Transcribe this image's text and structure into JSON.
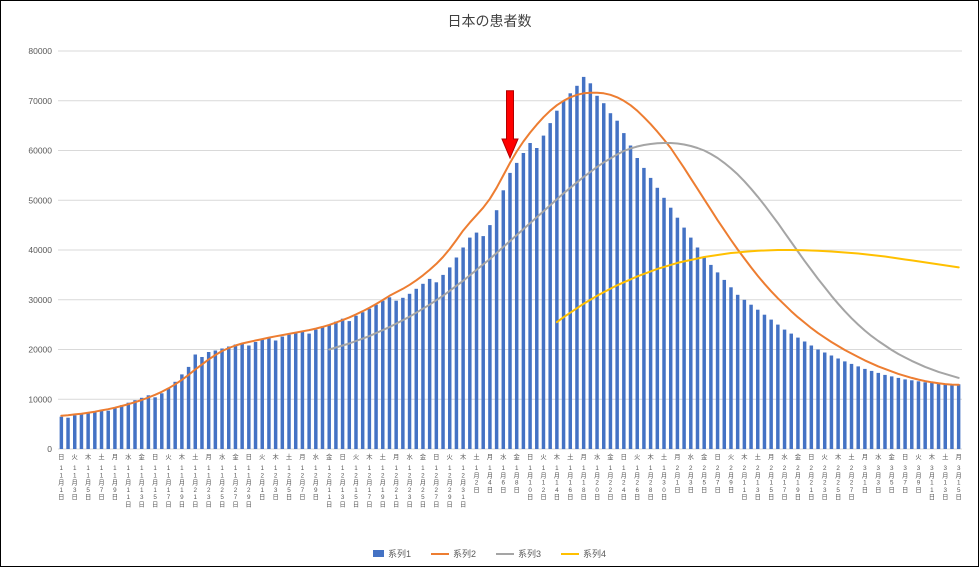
{
  "chart_data": {
    "type": "bar",
    "title": "日本の患者数",
    "ylim": [
      0,
      80000
    ],
    "y_ticks": [
      0,
      10000,
      20000,
      30000,
      40000,
      50000,
      60000,
      70000,
      80000
    ],
    "n_points": 135,
    "x_tick_every": 2,
    "x_range_note": "daily values 11月1日〜3月15日, tick labels every 2 days",
    "x_tick_labels": [
      {
        "w": "日",
        "d": "11月1日"
      },
      {
        "w": "火",
        "d": "11月3日"
      },
      {
        "w": "木",
        "d": "11月5日"
      },
      {
        "w": "土",
        "d": "11月7日"
      },
      {
        "w": "月",
        "d": "11月9日"
      },
      {
        "w": "水",
        "d": "11月11日"
      },
      {
        "w": "金",
        "d": "11月13日"
      },
      {
        "w": "日",
        "d": "11月15日"
      },
      {
        "w": "火",
        "d": "11月17日"
      },
      {
        "w": "木",
        "d": "11月19日"
      },
      {
        "w": "土",
        "d": "11月21日"
      },
      {
        "w": "月",
        "d": "11月23日"
      },
      {
        "w": "水",
        "d": "11月25日"
      },
      {
        "w": "金",
        "d": "11月27日"
      },
      {
        "w": "日",
        "d": "11月29日"
      },
      {
        "w": "火",
        "d": "12月1日"
      },
      {
        "w": "木",
        "d": "12月3日"
      },
      {
        "w": "土",
        "d": "12月5日"
      },
      {
        "w": "月",
        "d": "12月7日"
      },
      {
        "w": "水",
        "d": "12月9日"
      },
      {
        "w": "金",
        "d": "12月11日"
      },
      {
        "w": "日",
        "d": "12月13日"
      },
      {
        "w": "火",
        "d": "12月15日"
      },
      {
        "w": "木",
        "d": "12月17日"
      },
      {
        "w": "土",
        "d": "12月19日"
      },
      {
        "w": "月",
        "d": "12月21日"
      },
      {
        "w": "水",
        "d": "12月23日"
      },
      {
        "w": "金",
        "d": "12月25日"
      },
      {
        "w": "日",
        "d": "12月27日"
      },
      {
        "w": "火",
        "d": "12月29日"
      },
      {
        "w": "木",
        "d": "12月31日"
      },
      {
        "w": "土",
        "d": "1月2日"
      },
      {
        "w": "月",
        "d": "1月4日"
      },
      {
        "w": "水",
        "d": "1月6日"
      },
      {
        "w": "金",
        "d": "1月8日"
      },
      {
        "w": "日",
        "d": "1月10日"
      },
      {
        "w": "火",
        "d": "1月12日"
      },
      {
        "w": "木",
        "d": "1月14日"
      },
      {
        "w": "土",
        "d": "1月16日"
      },
      {
        "w": "月",
        "d": "1月18日"
      },
      {
        "w": "水",
        "d": "1月20日"
      },
      {
        "w": "金",
        "d": "1月22日"
      },
      {
        "w": "日",
        "d": "1月24日"
      },
      {
        "w": "火",
        "d": "1月26日"
      },
      {
        "w": "木",
        "d": "1月28日"
      },
      {
        "w": "土",
        "d": "1月30日"
      },
      {
        "w": "月",
        "d": "2月1日"
      },
      {
        "w": "水",
        "d": "2月3日"
      },
      {
        "w": "金",
        "d": "2月5日"
      },
      {
        "w": "日",
        "d": "2月7日"
      },
      {
        "w": "火",
        "d": "2月9日"
      },
      {
        "w": "木",
        "d": "2月11日"
      },
      {
        "w": "土",
        "d": "2月13日"
      },
      {
        "w": "月",
        "d": "2月15日"
      },
      {
        "w": "水",
        "d": "2月17日"
      },
      {
        "w": "金",
        "d": "2月19日"
      },
      {
        "w": "日",
        "d": "2月21日"
      },
      {
        "w": "火",
        "d": "2月23日"
      },
      {
        "w": "木",
        "d": "2月25日"
      },
      {
        "w": "土",
        "d": "2月27日"
      },
      {
        "w": "月",
        "d": "3月1日"
      },
      {
        "w": "水",
        "d": "3月3日"
      },
      {
        "w": "金",
        "d": "3月5日"
      },
      {
        "w": "日",
        "d": "3月7日"
      },
      {
        "w": "火",
        "d": "3月9日"
      },
      {
        "w": "木",
        "d": "3月11日"
      },
      {
        "w": "土",
        "d": "3月13日"
      },
      {
        "w": "月",
        "d": "3月15日"
      }
    ],
    "series": [
      {
        "name": "系列1",
        "type": "bar",
        "color": "#4472C4",
        "start_index": 0,
        "values": [
          6500,
          6300,
          6800,
          7000,
          7300,
          7600,
          7900,
          7700,
          8300,
          8800,
          9300,
          9800,
          10300,
          10800,
          10400,
          11200,
          12200,
          13500,
          15000,
          16500,
          19000,
          18500,
          19500,
          19800,
          20200,
          20600,
          21000,
          21300,
          20800,
          21500,
          22000,
          22300,
          21800,
          22600,
          23000,
          23300,
          23600,
          23200,
          24000,
          24500,
          25000,
          25600,
          26200,
          25700,
          26800,
          27500,
          28200,
          29000,
          29800,
          30500,
          29800,
          30400,
          31200,
          32200,
          33200,
          34200,
          33500,
          35000,
          36500,
          38500,
          40500,
          42500,
          43500,
          42800,
          45000,
          48000,
          52000,
          55500,
          57500,
          59500,
          61500,
          60500,
          63000,
          65500,
          68000,
          70000,
          71500,
          73000,
          74800,
          73500,
          71000,
          69500,
          67500,
          66000,
          63500,
          61000,
          58500,
          56500,
          54500,
          52500,
          50500,
          48500,
          46500,
          44500,
          42500,
          40500,
          38500,
          37000,
          35500,
          34000,
          32500,
          31000,
          30000,
          29000,
          28000,
          27000,
          26000,
          25000,
          24000,
          23200,
          22400,
          21600,
          20800,
          20000,
          19400,
          18800,
          18200,
          17600,
          17100,
          16600,
          16100,
          15700,
          15300,
          14900,
          14600,
          14300,
          14000,
          13800,
          13600,
          13400,
          13300,
          13200,
          13100,
          13050,
          13000
        ]
      },
      {
        "name": "系列2",
        "type": "line",
        "color": "#ED7D31",
        "start_index": 0,
        "values": [
          6700,
          6800,
          6950,
          7100,
          7300,
          7500,
          7750,
          8000,
          8300,
          8650,
          9000,
          9400,
          9850,
          10350,
          10900,
          11500,
          12200,
          13000,
          13900,
          14900,
          16000,
          17000,
          18000,
          18900,
          19700,
          20300,
          20800,
          21200,
          21500,
          21800,
          22100,
          22400,
          22650,
          22900,
          23150,
          23400,
          23650,
          23900,
          24200,
          24550,
          24950,
          25400,
          25900,
          26450,
          27050,
          27700,
          28400,
          29150,
          29950,
          30800,
          31500,
          32200,
          33000,
          33900,
          34900,
          36000,
          37200,
          38600,
          40200,
          42000,
          43900,
          45500,
          47000,
          48500,
          50300,
          52500,
          55000,
          57500,
          59800,
          61800,
          63600,
          65200,
          66700,
          68000,
          69100,
          70000,
          70700,
          71200,
          71500,
          71600,
          71600,
          71500,
          71200,
          70700,
          70000,
          69100,
          68000,
          66700,
          65300,
          63800,
          62200,
          60500,
          58500,
          56500,
          54400,
          52300,
          50200,
          48100,
          46000,
          44000,
          42000,
          40100,
          38300,
          36500,
          34800,
          33200,
          31700,
          30300,
          29000,
          27700,
          26500,
          25400,
          24300,
          23300,
          22400,
          21500,
          20700,
          19900,
          19200,
          18500,
          17800,
          17200,
          16600,
          16100,
          15600,
          15100,
          14700,
          14300,
          13950,
          13650,
          13400,
          13200,
          13050,
          12950,
          12900
        ]
      },
      {
        "name": "系列3",
        "type": "line",
        "color": "#A5A5A5",
        "start_index": 40,
        "values": [
          20000,
          20400,
          20800,
          21200,
          21700,
          22200,
          22700,
          23300,
          23900,
          24500,
          25200,
          25900,
          26600,
          27400,
          28200,
          29000,
          29900,
          30800,
          31800,
          32800,
          33800,
          34900,
          36000,
          37100,
          38200,
          39400,
          40600,
          41800,
          43000,
          44200,
          45400,
          46600,
          47800,
          49000,
          50200,
          51400,
          52500,
          53600,
          54700,
          55700,
          56700,
          57600,
          58400,
          59200,
          59900,
          60400,
          60800,
          61100,
          61300,
          61450,
          61500,
          61500,
          61400,
          61200,
          60900,
          60500,
          60000,
          59300,
          58500,
          57500,
          56400,
          55200,
          53800,
          52300,
          50700,
          49000,
          47200,
          45400,
          43500,
          41600,
          39700,
          37800,
          36000,
          34200,
          32500,
          30800,
          29200,
          27700,
          26300,
          25000,
          23800,
          22700,
          21700,
          20800,
          19900,
          19100,
          18400,
          17700,
          17100,
          16500,
          16000,
          15500,
          15100,
          14700,
          14300
        ]
      },
      {
        "name": "系列4",
        "type": "line",
        "color": "#FFC000",
        "start_index": 74,
        "values": [
          25500,
          26500,
          27400,
          28300,
          29200,
          30000,
          30800,
          31500,
          32200,
          32900,
          33500,
          34100,
          34700,
          35200,
          35700,
          36200,
          36600,
          37000,
          37400,
          37700,
          38000,
          38300,
          38600,
          38800,
          39000,
          39200,
          39400,
          39500,
          39650,
          39750,
          39850,
          39900,
          39950,
          40000,
          40000,
          40000,
          39980,
          39950,
          39900,
          39850,
          39780,
          39700,
          39600,
          39500,
          39400,
          39300,
          39150,
          39000,
          38850,
          38700,
          38500,
          38300,
          38100,
          37900,
          37700,
          37500,
          37300,
          37100,
          36900,
          36700,
          36500
        ]
      }
    ],
    "annotation": {
      "type": "down-arrow",
      "color": "#FF0000",
      "outline": "#B00000",
      "x_index": 67,
      "y_top": 72000,
      "y_tip": 58500
    },
    "grid": true,
    "legend_position": "bottom",
    "colors": {
      "grid": "#D9D9D9",
      "axis_text": "#595959",
      "title_text": "#404040",
      "background": "#FFFFFF",
      "border": "#000000"
    }
  }
}
